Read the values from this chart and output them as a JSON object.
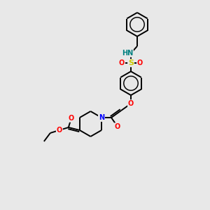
{
  "background_color": "#e8e8e8",
  "figsize": [
    3.0,
    3.0
  ],
  "dpi": 100,
  "atom_colors": {
    "C": "#000000",
    "N": "#0000ff",
    "O": "#ff0000",
    "S": "#cccc00",
    "H": "#008080"
  },
  "bond_color": "#000000",
  "bond_width": 1.4,
  "font_size_atom": 7.0
}
